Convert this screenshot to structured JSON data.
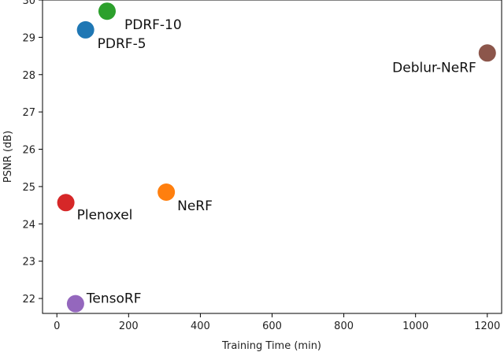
{
  "chart_data": {
    "type": "scatter",
    "xlabel": "Training Time (min)",
    "ylabel": "PSNR (dB)",
    "xlim": [
      -40,
      1240
    ],
    "ylim": [
      21.6,
      30.0
    ],
    "xticks": [
      0,
      200,
      400,
      600,
      800,
      1000,
      1200
    ],
    "yticks": [
      22,
      23,
      24,
      25,
      26,
      27,
      28,
      29,
      30
    ],
    "grid": false,
    "points": [
      {
        "label": "PDRF-10",
        "x": 140,
        "y": 29.7,
        "color": "#2ca02c"
      },
      {
        "label": "PDRF-5",
        "x": 80,
        "y": 29.2,
        "color": "#1f77b4"
      },
      {
        "label": "Deblur-NeRF",
        "x": 1200,
        "y": 28.58,
        "color": "#8c564b"
      },
      {
        "label": "NeRF",
        "x": 305,
        "y": 24.85,
        "color": "#ff7f0e"
      },
      {
        "label": "Plenoxel",
        "x": 25,
        "y": 24.57,
        "color": "#d62728"
      },
      {
        "label": "TensoRF",
        "x": 52,
        "y": 21.86,
        "color": "#9467bd"
      }
    ]
  }
}
